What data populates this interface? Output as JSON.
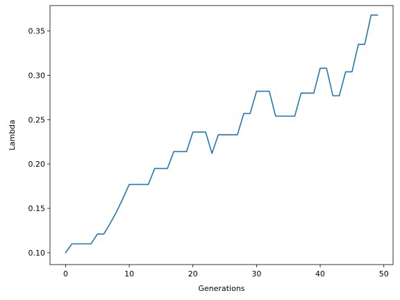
{
  "chart_data": {
    "type": "line",
    "title": "",
    "xlabel": "Generations",
    "ylabel": "Lambda",
    "xlim": [
      -2.45,
      51.45
    ],
    "ylim": [
      0.0866,
      0.3787
    ],
    "xticks": [
      0,
      10,
      20,
      30,
      40,
      50
    ],
    "yticks": [
      0.1,
      0.15,
      0.2,
      0.25,
      0.3,
      0.35
    ],
    "xtick_labels": [
      "0",
      "10",
      "20",
      "30",
      "40",
      "50"
    ],
    "ytick_labels": [
      "0.10",
      "0.15",
      "0.20",
      "0.25",
      "0.30",
      "0.35"
    ],
    "grid": false,
    "legend": "none",
    "series": [
      {
        "color": "#1f77b4",
        "x": [
          0,
          1,
          2,
          3,
          4,
          5,
          6,
          7,
          8,
          9,
          10,
          11,
          12,
          13,
          14,
          15,
          16,
          17,
          18,
          19,
          20,
          21,
          22,
          23,
          24,
          25,
          26,
          27,
          28,
          29,
          30,
          31,
          32,
          33,
          34,
          35,
          36,
          37,
          38,
          39,
          40,
          41,
          42,
          43,
          44,
          45,
          46,
          47,
          48,
          49
        ],
        "y": [
          0.1,
          0.11,
          0.11,
          0.11,
          0.11,
          0.121,
          0.121,
          0.133,
          0.146,
          0.161,
          0.177,
          0.177,
          0.177,
          0.177,
          0.195,
          0.195,
          0.195,
          0.214,
          0.214,
          0.214,
          0.236,
          0.236,
          0.236,
          0.212,
          0.233,
          0.233,
          0.233,
          0.233,
          0.257,
          0.257,
          0.282,
          0.282,
          0.282,
          0.254,
          0.254,
          0.254,
          0.254,
          0.28,
          0.28,
          0.28,
          0.308,
          0.308,
          0.277,
          0.277,
          0.304,
          0.304,
          0.335,
          0.335,
          0.368,
          0.368
        ]
      }
    ]
  }
}
